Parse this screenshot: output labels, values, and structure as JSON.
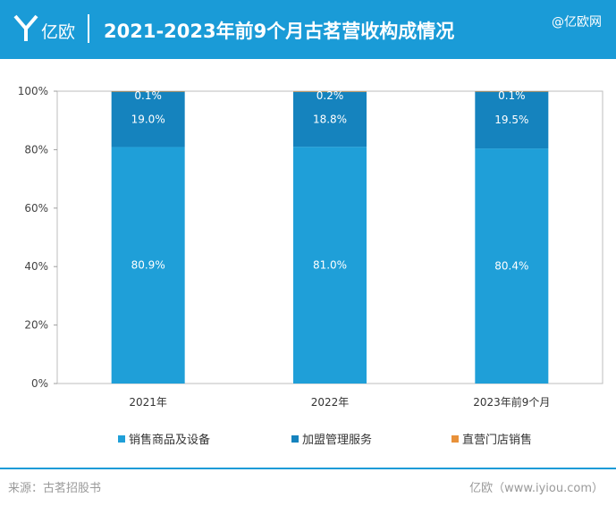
{
  "header": {
    "brand": "亿欧",
    "title": "2021-2023年前9个月古茗营收构成情况",
    "watermark": "@亿欧网"
  },
  "colors": {
    "header_bg": "#1a9bd7",
    "series_1": "#1f9fd8",
    "series_2": "#1583be",
    "series_3": "#e8913a"
  },
  "chart_data": {
    "type": "bar",
    "stacked": true,
    "categories": [
      "2021年",
      "2022年",
      "2023年前9个月"
    ],
    "series": [
      {
        "name": "销售商品及设备",
        "values": [
          80.9,
          81.0,
          80.4
        ],
        "labels": [
          "80.9%",
          "81.0%",
          "80.4%"
        ]
      },
      {
        "name": "加盟管理服务",
        "values": [
          19.0,
          18.8,
          19.5
        ],
        "labels": [
          "19.0%",
          "18.8%",
          "19.5%"
        ]
      },
      {
        "name": "直营门店销售",
        "values": [
          0.1,
          0.2,
          0.1
        ],
        "labels": [
          "0.1%",
          "0.2%",
          "0.1%"
        ]
      }
    ],
    "y_ticks": [
      "0%",
      "20%",
      "40%",
      "60%",
      "80%",
      "100%"
    ],
    "ylim": [
      0,
      100
    ],
    "legend_position": "bottom",
    "grid": false
  },
  "footer": {
    "source": "来源：古茗招股书",
    "credit": "亿欧（www.iyiou.com）"
  }
}
